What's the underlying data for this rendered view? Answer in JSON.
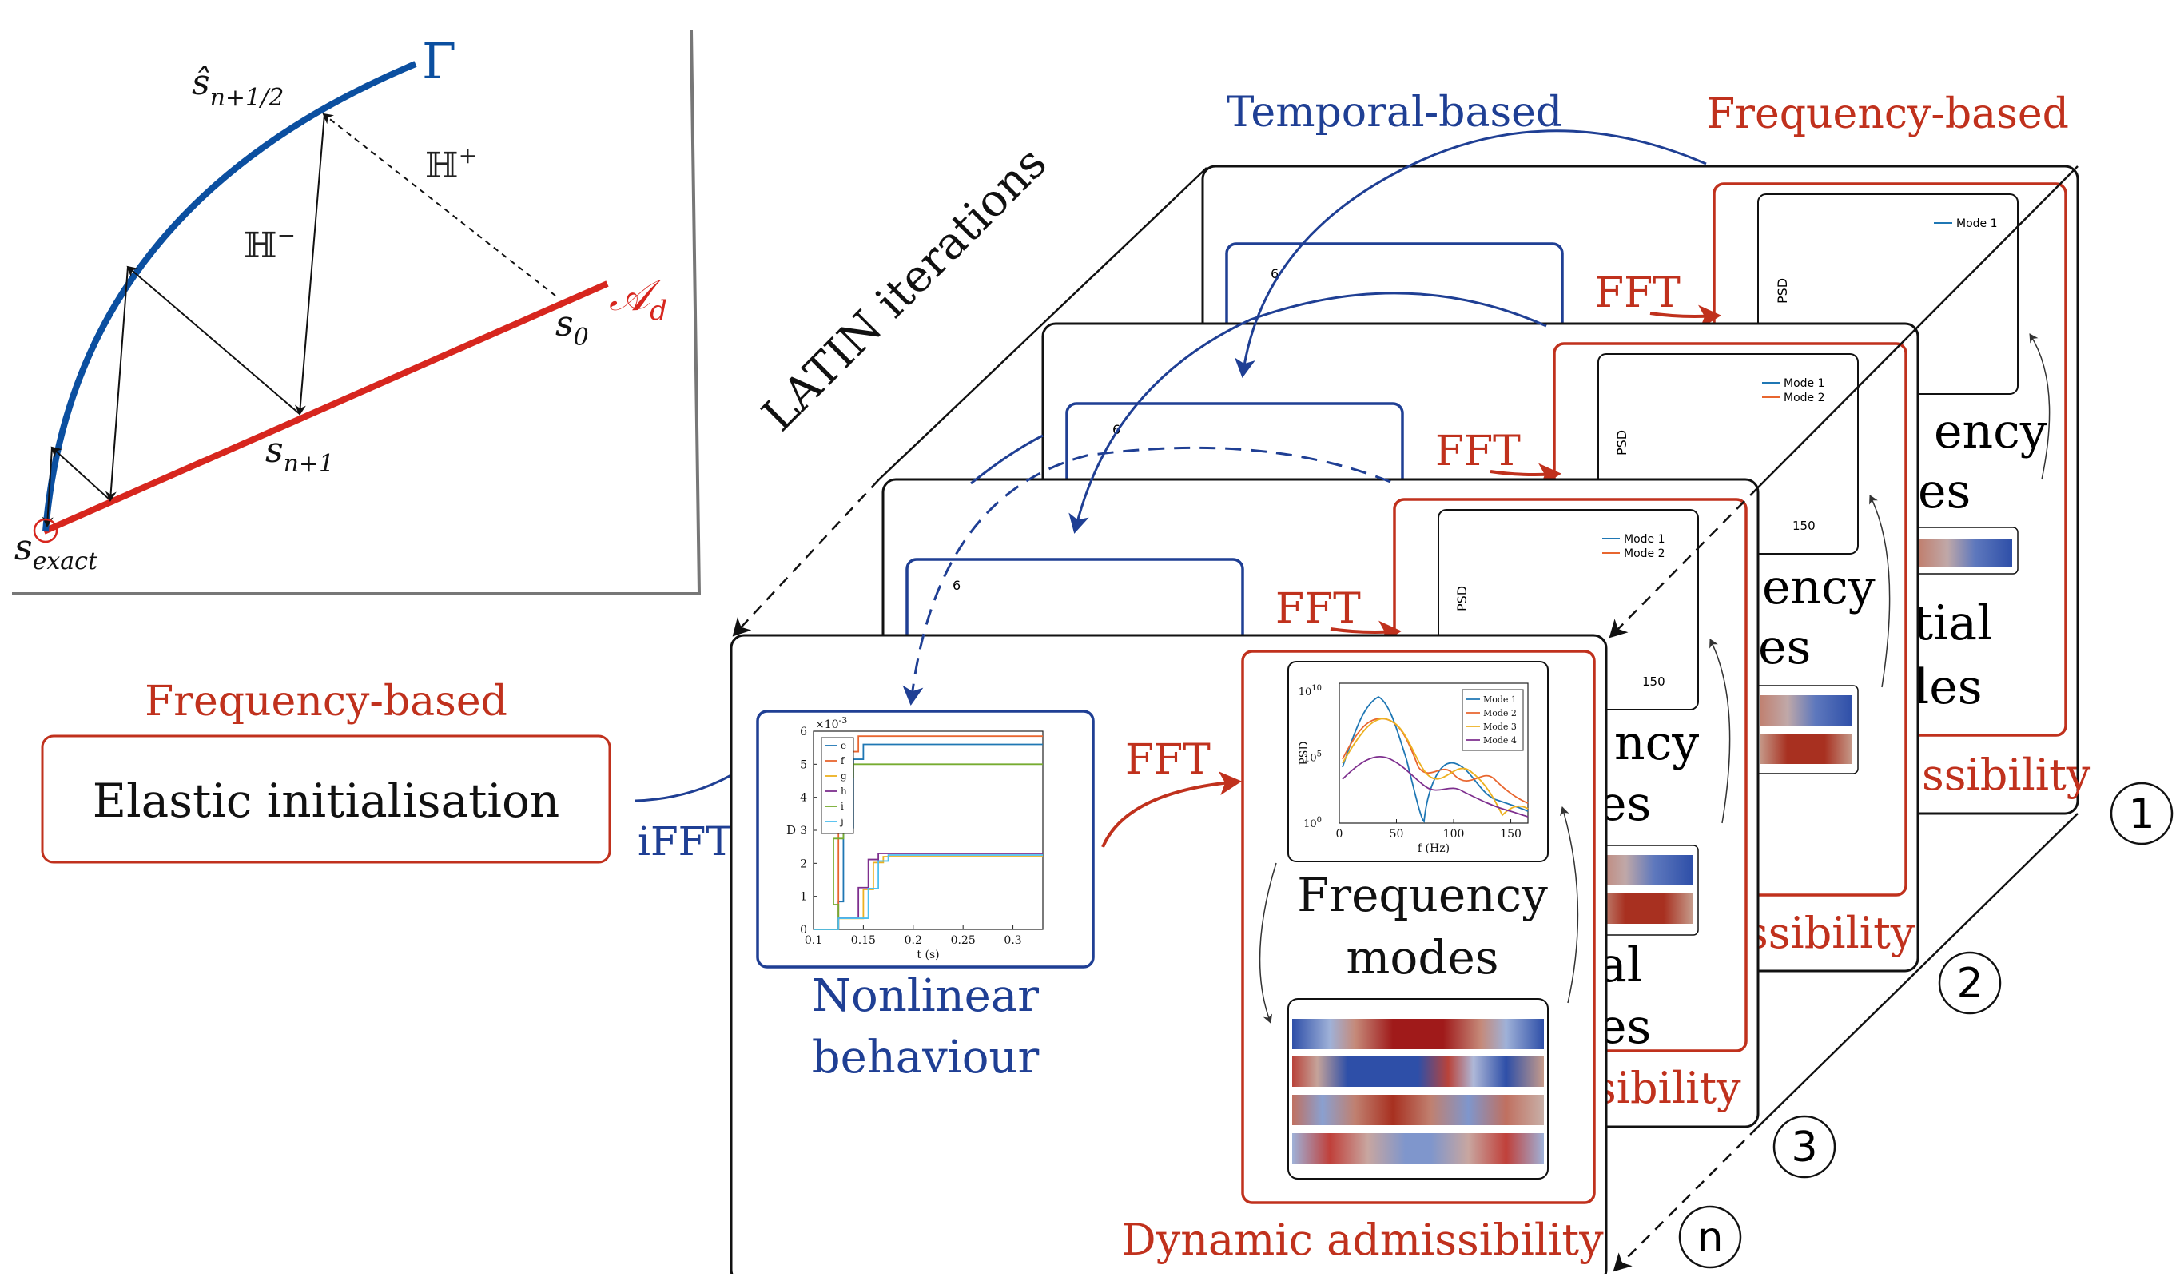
{
  "colors": {
    "blue": "#1f3f94",
    "red": "#c0311d",
    "gamma_blue": "#0b4fa0",
    "ad_red": "#d7261e",
    "text": "#111111"
  },
  "latin_scheme": {
    "curve_label": "Γ",
    "line_label_main": "𝒜",
    "line_label_sub": "d",
    "hminus": "ℍ",
    "hminus_sup": "−",
    "hplus": "ℍ",
    "hplus_sup": "+",
    "s_half_main": "ŝ",
    "s_half_sub": "n+1/2",
    "s_next_main": "s",
    "s_next_sub": "n+1",
    "s0_main": "s",
    "s0_sub": "0",
    "s_exact_main": "s",
    "s_exact_sub": "exact"
  },
  "labels": {
    "temporal_based": "Temporal-based",
    "frequency_based_top": "Frequency-based",
    "latin_iterations": "LATIN iterations",
    "frequency_based_left": "Frequency-based",
    "elastic_initialisation": "Elastic initialisation",
    "ifft": "iFFT",
    "fft": "FFT",
    "nonlinear_line1": "Nonlinear",
    "nonlinear_line2": "behaviour",
    "frequency_line1": "Frequency",
    "frequency_line2": "modes",
    "dynamic_admissibility": "Dynamic admissibility",
    "back_cut_1": "ency",
    "back_cut_2": "es",
    "back_cut_3": "tial",
    "back_cut_4": "les",
    "back_cut_5": "ncy",
    "back_cut_6": "al",
    "back_cut_7": "ssibility",
    "back_cut_8": "sibility"
  },
  "iterations": [
    "1",
    "2",
    "3",
    "n"
  ],
  "temporal_plot": {
    "ylabel": "D",
    "xlabel": "t (s)",
    "y_exponent": "×10",
    "y_exponent_power": "-3",
    "y_ticks": [
      "0",
      "1",
      "2",
      "3",
      "4",
      "5",
      "6"
    ],
    "x_ticks": [
      "0.1",
      "0.15",
      "0.2",
      "0.25",
      "0.3"
    ],
    "legend": [
      "e",
      "f",
      "g",
      "h",
      "i",
      "j"
    ],
    "top_tick": "6"
  },
  "psd_plot": {
    "ylabel": "PSD",
    "xlabel": "f (Hz)",
    "y_ticks": [
      "10",
      "10",
      "10"
    ],
    "y_powers": [
      "10",
      "5",
      "0"
    ],
    "x_ticks": [
      "0",
      "50",
      "100",
      "150"
    ],
    "legend": [
      "Mode 1",
      "Mode 2",
      "Mode 3",
      "Mode 4"
    ],
    "back_tick": "150"
  }
}
